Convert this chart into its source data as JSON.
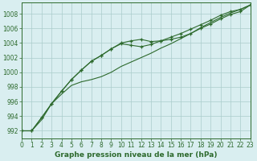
{
  "x": [
    0,
    1,
    2,
    3,
    4,
    5,
    6,
    7,
    8,
    9,
    10,
    11,
    12,
    13,
    14,
    15,
    16,
    17,
    18,
    19,
    20,
    21,
    22,
    23
  ],
  "series1": [
    992.0,
    992.0,
    993.8,
    995.7,
    997.4,
    999.0,
    1000.3,
    1001.5,
    1002.3,
    1003.2,
    1004.0,
    1004.3,
    1004.5,
    1004.2,
    1004.3,
    1004.5,
    1004.8,
    1005.3,
    1006.0,
    1006.6,
    1007.3,
    1007.9,
    1008.3,
    1009.2
  ],
  "series2": [
    992.0,
    992.0,
    993.8,
    995.7,
    997.4,
    999.0,
    1000.3,
    1001.5,
    1002.3,
    1003.2,
    1003.9,
    1003.7,
    1003.5,
    1003.8,
    1004.3,
    1004.8,
    1005.3,
    1005.9,
    1006.5,
    1007.1,
    1007.8,
    1008.3,
    1008.6,
    1009.2
  ],
  "series3": [
    992.0,
    992.0,
    993.5,
    995.7,
    997.0,
    998.2,
    998.7,
    999.0,
    999.4,
    1000.0,
    1000.8,
    1001.4,
    1002.0,
    1002.6,
    1003.3,
    1003.9,
    1004.6,
    1005.3,
    1006.1,
    1006.8,
    1007.5,
    1008.1,
    1008.6,
    1009.2
  ],
  "bg_color": "#d9eef0",
  "grid_color": "#aacccc",
  "line_color": "#2d6a2d",
  "xlabel": "Graphe pression niveau de la mer (hPa)",
  "ylim": [
    991.0,
    1009.5
  ],
  "yticks": [
    992,
    994,
    996,
    998,
    1000,
    1002,
    1004,
    1006,
    1008
  ],
  "xlim": [
    0,
    23
  ],
  "xticks": [
    0,
    1,
    2,
    3,
    4,
    5,
    6,
    7,
    8,
    9,
    10,
    11,
    12,
    13,
    14,
    15,
    16,
    17,
    18,
    19,
    20,
    21,
    22,
    23
  ],
  "tick_fontsize": 5.5,
  "xlabel_fontsize": 6.5
}
